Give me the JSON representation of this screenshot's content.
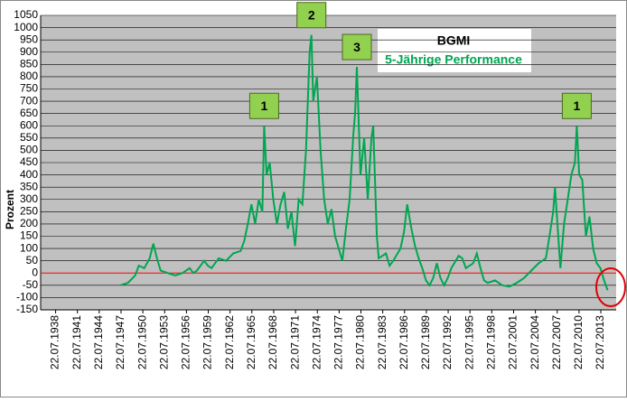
{
  "chart_data": {
    "type": "line",
    "title": "BGMI",
    "subtitle": "5-Jährige Performance",
    "y_label": "Prozent",
    "x": [
      "01.07.1947",
      "01.07.1948",
      "01.07.1949",
      "01.01.1950",
      "01.10.1950",
      "01.07.1951",
      "01.01.1952",
      "01.07.1952",
      "01.01.1953",
      "01.01.1954",
      "01.01.1955",
      "01.01.1956",
      "01.01.1957",
      "01.07.1957",
      "01.01.1958",
      "01.01.1959",
      "01.07.1959",
      "01.01.1960",
      "01.01.1961",
      "01.01.1962",
      "01.01.1963",
      "01.01.1964",
      "01.07.1964",
      "01.01.1965",
      "01.07.1965",
      "01.01.1966",
      "01.07.1966",
      "01.01.1967",
      "01.04.1967",
      "01.08.1967",
      "01.01.1968",
      "01.07.1968",
      "01.01.1969",
      "01.07.1969",
      "01.01.1970",
      "01.07.1970",
      "01.01.1971",
      "01.07.1971",
      "01.01.1972",
      "01.07.1972",
      "01.01.1973",
      "01.07.1973",
      "01.10.1973",
      "01.01.1974",
      "01.07.1974",
      "01.01.1975",
      "01.07.1975",
      "01.01.1976",
      "01.07.1976",
      "01.01.1977",
      "01.07.1977",
      "01.01.1978",
      "01.07.1978",
      "01.01.1979",
      "01.07.1979",
      "01.10.1979",
      "01.01.1980",
      "01.07.1980",
      "01.01.1981",
      "01.07.1981",
      "01.01.1982",
      "01.04.1982",
      "01.10.1982",
      "01.01.1983",
      "01.01.1984",
      "01.07.1984",
      "01.01.1985",
      "01.01.1986",
      "01.07.1986",
      "01.12.1986",
      "01.07.1987",
      "01.01.1988",
      "01.07.1988",
      "01.01.1989",
      "01.07.1989",
      "01.01.1990",
      "01.07.1990",
      "01.01.1991",
      "01.07.1991",
      "01.01.1992",
      "01.07.1992",
      "01.01.1993",
      "01.01.1994",
      "01.07.1994",
      "01.01.1995",
      "01.01.1996",
      "01.07.1996",
      "01.01.1997",
      "01.07.1997",
      "01.01.1998",
      "01.01.1999",
      "01.01.2000",
      "01.01.2001",
      "01.01.2002",
      "01.01.2003",
      "01.01.2004",
      "01.01.2005",
      "01.01.2006",
      "01.07.2006",
      "01.01.2007",
      "01.04.2007",
      "01.08.2007",
      "01.01.2008",
      "01.07.2008",
      "01.01.2009",
      "01.07.2009",
      "01.01.2010",
      "01.04.2010",
      "01.08.2010",
      "01.01.2011",
      "01.07.2011",
      "01.01.2012",
      "01.07.2012",
      "01.01.2013",
      "01.07.2013",
      "01.01.2014",
      "01.07.2014"
    ],
    "series": [
      {
        "name": "BGMI",
        "color": "#00a651",
        "values": [
          -50,
          -40,
          -10,
          30,
          20,
          60,
          120,
          60,
          10,
          0,
          -10,
          0,
          20,
          0,
          10,
          50,
          30,
          20,
          60,
          50,
          80,
          90,
          130,
          200,
          280,
          200,
          300,
          250,
          600,
          400,
          450,
          300,
          200,
          280,
          330,
          180,
          250,
          110,
          300,
          280,
          500,
          900,
          970,
          700,
          800,
          500,
          300,
          200,
          260,
          150,
          100,
          50,
          180,
          300,
          560,
          650,
          840,
          400,
          550,
          300,
          550,
          600,
          150,
          60,
          80,
          30,
          50,
          100,
          170,
          280,
          180,
          110,
          60,
          20,
          -30,
          -50,
          -20,
          40,
          -20,
          -50,
          -20,
          20,
          70,
          60,
          20,
          40,
          80,
          20,
          -30,
          -40,
          -30,
          -50,
          -55,
          -40,
          -20,
          10,
          40,
          60,
          150,
          250,
          350,
          200,
          20,
          200,
          300,
          400,
          450,
          600,
          400,
          380,
          150,
          230,
          100,
          40,
          20,
          -30,
          -70
        ]
      }
    ],
    "reference_line": 0,
    "reference_color": "#ff0000",
    "annotations": [
      {
        "text": "1",
        "x": "01.04.1967"
      },
      {
        "text": "2",
        "x": "01.10.1973"
      },
      {
        "text": "3",
        "x": "01.01.1980"
      },
      {
        "text": "1",
        "x": "01.04.2010"
      }
    ],
    "xlim": [
      "01.07.1936",
      "01.09.2015"
    ],
    "xticks": [
      "22.07.1938",
      "22.07.1941",
      "22.07.1944",
      "22.07.1947",
      "22.07.1950",
      "22.07.1953",
      "22.07.1956",
      "22.07.1959",
      "22.07.1962",
      "22.07.1965",
      "22.07.1968",
      "22.07.1971",
      "22.07.1974",
      "22.07.1977",
      "22.07.1980",
      "22.07.1983",
      "22.07.1986",
      "22.07.1989",
      "22.07.1992",
      "22.07.1995",
      "22.07.1998",
      "22.07.2001",
      "22.07.2004",
      "22.07.2007",
      "22.07.2010",
      "22.07.2013"
    ],
    "ylim": [
      -150,
      1050
    ],
    "yticks": [
      -150,
      -100,
      -50,
      0,
      50,
      100,
      150,
      200,
      250,
      300,
      350,
      400,
      450,
      500,
      550,
      600,
      650,
      700,
      750,
      800,
      850,
      900,
      950,
      1000,
      1050
    ],
    "grid": true
  }
}
